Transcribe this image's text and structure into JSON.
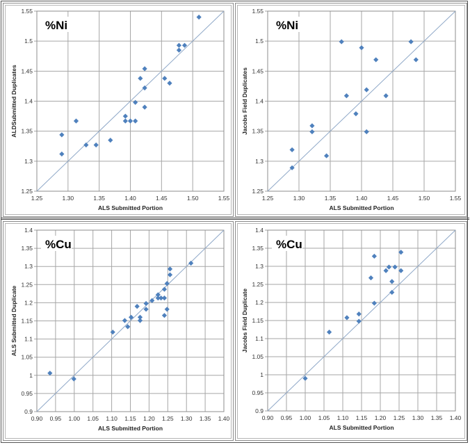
{
  "colors": {
    "marker": "#4f81bd",
    "grid": "#a6a6a6",
    "refline": "#8fa8c8"
  },
  "chart_data": [
    {
      "type": "scatter",
      "panel_label": "%Ni",
      "xlabel": "ALS Submitted Portion",
      "ylabel": "ALDSubmitted Duplicates",
      "xlim": [
        1.25,
        1.55
      ],
      "ylim": [
        1.25,
        1.55
      ],
      "xticks": [
        "1.25",
        "1.30",
        "1.35",
        "1.40",
        "1.45",
        "1.50",
        "1.55"
      ],
      "yticks": [
        "1.25",
        "1.3",
        "1.35",
        "1.4",
        "1.45",
        "1.5",
        "1.55"
      ],
      "grid": true,
      "reference_line": "y = x",
      "points": [
        [
          1.51,
          1.54
        ],
        [
          1.478,
          1.493
        ],
        [
          1.487,
          1.493
        ],
        [
          1.478,
          1.485
        ],
        [
          1.423,
          1.454
        ],
        [
          1.416,
          1.438
        ],
        [
          1.423,
          1.422
        ],
        [
          1.455,
          1.438
        ],
        [
          1.463,
          1.43
        ],
        [
          1.408,
          1.398
        ],
        [
          1.423,
          1.39
        ],
        [
          1.392,
          1.375
        ],
        [
          1.392,
          1.367
        ],
        [
          1.4,
          1.367
        ],
        [
          1.408,
          1.367
        ],
        [
          1.313,
          1.367
        ],
        [
          1.29,
          1.344
        ],
        [
          1.29,
          1.312
        ],
        [
          1.329,
          1.327
        ],
        [
          1.345,
          1.327
        ],
        [
          1.368,
          1.335
        ]
      ]
    },
    {
      "type": "scatter",
      "panel_label": "%Ni",
      "xlabel": "ALS Submitted Portion",
      "ylabel": "Jacobs Field Duplicates",
      "xlim": [
        1.25,
        1.55
      ],
      "ylim": [
        1.25,
        1.55
      ],
      "xticks": [
        "1.25",
        "1.30",
        "1.35",
        "1.40",
        "1.45",
        "1.50",
        "1.55"
      ],
      "yticks": [
        "1.25",
        "1.3",
        "1.35",
        "1.4",
        "1.45",
        "1.5",
        "1.55"
      ],
      "grid": true,
      "reference_line": "y = x",
      "points": [
        [
          1.368,
          1.499
        ],
        [
          1.4,
          1.489
        ],
        [
          1.423,
          1.469
        ],
        [
          1.479,
          1.499
        ],
        [
          1.487,
          1.469
        ],
        [
          1.408,
          1.419
        ],
        [
          1.376,
          1.409
        ],
        [
          1.439,
          1.409
        ],
        [
          1.391,
          1.379
        ],
        [
          1.408,
          1.349
        ],
        [
          1.321,
          1.359
        ],
        [
          1.321,
          1.349
        ],
        [
          1.289,
          1.319
        ],
        [
          1.289,
          1.289
        ],
        [
          1.344,
          1.309
        ]
      ]
    },
    {
      "type": "scatter",
      "panel_label": "%Cu",
      "xlabel": "ALS Submitted Portion",
      "ylabel": "ALS Submitted Duplicate",
      "xlim": [
        0.9,
        1.4
      ],
      "ylim": [
        0.9,
        1.4
      ],
      "xticks": [
        "0.90",
        "0.95",
        "1.00",
        "1.05",
        "1.10",
        "1.15",
        "1.20",
        "1.25",
        "1.30",
        "1.35",
        "1.40"
      ],
      "yticks": [
        "0.9",
        "0.95",
        "1",
        "1.05",
        "1.1",
        "1.15",
        "1.2",
        "1.25",
        "1.3",
        "1.35",
        "1.4"
      ],
      "grid": true,
      "reference_line": "y = x",
      "points": [
        [
          0.935,
          1.006
        ],
        [
          0.999,
          0.99
        ],
        [
          1.103,
          1.119
        ],
        [
          1.135,
          1.151
        ],
        [
          1.143,
          1.134
        ],
        [
          1.152,
          1.16
        ],
        [
          1.176,
          1.16
        ],
        [
          1.176,
          1.151
        ],
        [
          1.168,
          1.19
        ],
        [
          1.192,
          1.198
        ],
        [
          1.192,
          1.182
        ],
        [
          1.208,
          1.206
        ],
        [
          1.224,
          1.222
        ],
        [
          1.224,
          1.213
        ],
        [
          1.232,
          1.213
        ],
        [
          1.241,
          1.213
        ],
        [
          1.241,
          1.237
        ],
        [
          1.241,
          1.165
        ],
        [
          1.248,
          1.253
        ],
        [
          1.248,
          1.182
        ],
        [
          1.256,
          1.293
        ],
        [
          1.256,
          1.277
        ],
        [
          1.312,
          1.309
        ]
      ]
    },
    {
      "type": "scatter",
      "panel_label": "%Cu",
      "xlabel": "ALS Submitted Portion",
      "ylabel": "Jacobs Field Duplicate",
      "xlim": [
        0.9,
        1.4
      ],
      "ylim": [
        0.9,
        1.4
      ],
      "xticks": [
        "0.90",
        "0.95",
        "1.00",
        "1.05",
        "1.10",
        "1.15",
        "1.20",
        "1.25",
        "1.30",
        "1.35",
        "1.40"
      ],
      "yticks": [
        "0.9",
        "0.95",
        "1",
        "1.05",
        "1.1",
        "1.15",
        "1.2",
        "1.25",
        "1.3",
        "1.35",
        "1.4"
      ],
      "grid": true,
      "reference_line": "y = x",
      "points": [
        [
          1.0,
          0.99
        ],
        [
          1.064,
          1.118
        ],
        [
          1.111,
          1.158
        ],
        [
          1.143,
          1.168
        ],
        [
          1.143,
          1.148
        ],
        [
          1.184,
          1.198
        ],
        [
          1.175,
          1.268
        ],
        [
          1.184,
          1.328
        ],
        [
          1.215,
          1.288
        ],
        [
          1.223,
          1.298
        ],
        [
          1.239,
          1.298
        ],
        [
          1.231,
          1.258
        ],
        [
          1.231,
          1.228
        ],
        [
          1.255,
          1.339
        ],
        [
          1.255,
          1.288
        ]
      ]
    }
  ]
}
